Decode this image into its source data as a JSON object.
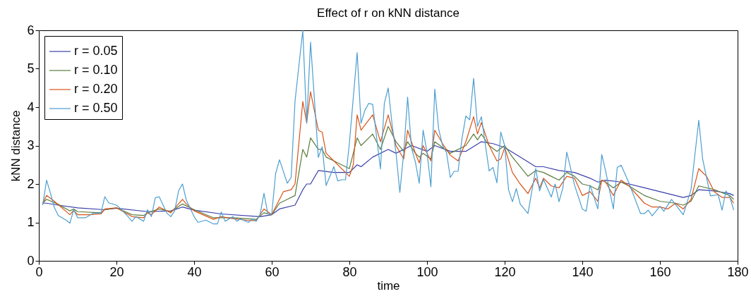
{
  "chart_data": {
    "type": "line",
    "title": "Effect of r on kNN distance",
    "xlabel": "time",
    "ylabel": "kNN distance",
    "xlim": [
      0,
      180
    ],
    "xticks": [
      0,
      20,
      40,
      60,
      80,
      100,
      120,
      140,
      160,
      180
    ],
    "ylim": [
      0,
      6
    ],
    "yticks": [
      0,
      1,
      2,
      3,
      4,
      5,
      6
    ],
    "grid": false,
    "legend": "top left",
    "line_style": "solid",
    "marker": "none",
    "series": [
      {
        "name": "r = 0.05",
        "color": "#3b3fa8",
        "x": [
          1,
          2,
          5,
          10,
          17,
          20,
          28,
          34,
          37,
          40,
          47,
          57,
          60,
          62,
          66,
          68,
          69,
          70,
          72,
          76,
          80,
          82,
          83,
          86,
          90,
          92,
          96,
          100,
          102,
          106,
          110,
          114,
          117,
          120,
          124,
          128,
          130,
          134,
          138,
          142,
          144,
          146,
          150,
          156,
          160,
          166,
          168,
          170,
          174,
          178,
          179
        ],
        "values": [
          1.5,
          1.5,
          1.45,
          1.38,
          1.33,
          1.37,
          1.28,
          1.3,
          1.4,
          1.32,
          1.22,
          1.15,
          1.2,
          1.35,
          1.45,
          1.85,
          2.0,
          2.0,
          2.35,
          2.3,
          2.3,
          2.5,
          2.45,
          2.7,
          2.9,
          2.8,
          3.0,
          2.85,
          3.0,
          2.85,
          2.85,
          3.1,
          3.05,
          2.95,
          2.7,
          2.45,
          2.45,
          2.35,
          2.3,
          2.15,
          2.05,
          2.1,
          2.05,
          1.9,
          1.8,
          1.65,
          1.7,
          1.85,
          1.82,
          1.75,
          1.7
        ]
      },
      {
        "name": "r = 0.10",
        "color": "#5b7d3c",
        "x": [
          1,
          2,
          5,
          8,
          9,
          10,
          16,
          17,
          20,
          24,
          27,
          28,
          31,
          34,
          37,
          40,
          45,
          50,
          56,
          58,
          60,
          62,
          64,
          66,
          68,
          69,
          70,
          72,
          73,
          74,
          76,
          80,
          82,
          83,
          86,
          88,
          90,
          92,
          94,
          95,
          97,
          98,
          99,
          101,
          102,
          104,
          106,
          110,
          112,
          113,
          114,
          116,
          118,
          120,
          122,
          124,
          126,
          128,
          130,
          132,
          134,
          136,
          138,
          140,
          142,
          144,
          145,
          146,
          148,
          150,
          152,
          156,
          160,
          164,
          166,
          168,
          170,
          174,
          178,
          179
        ],
        "values": [
          1.5,
          1.6,
          1.47,
          1.3,
          1.35,
          1.28,
          1.25,
          1.33,
          1.38,
          1.2,
          1.18,
          1.25,
          1.35,
          1.28,
          1.48,
          1.33,
          1.12,
          1.12,
          1.08,
          1.25,
          1.2,
          1.5,
          1.6,
          1.7,
          2.9,
          2.7,
          3.2,
          2.9,
          2.9,
          2.7,
          2.6,
          2.4,
          3.2,
          3.0,
          3.3,
          2.9,
          3.5,
          3.1,
          2.85,
          3.1,
          2.8,
          2.7,
          2.8,
          2.65,
          3.1,
          2.95,
          2.8,
          3.0,
          3.3,
          3.15,
          3.3,
          3.0,
          2.85,
          3.0,
          2.7,
          2.45,
          2.2,
          2.35,
          2.3,
          2.2,
          2.1,
          2.3,
          2.2,
          2.0,
          1.95,
          1.85,
          2.1,
          2.05,
          1.9,
          2.05,
          1.95,
          1.7,
          1.55,
          1.5,
          1.45,
          1.55,
          1.95,
          1.85,
          1.7,
          1.6
        ]
      },
      {
        "name": "r = 0.20",
        "color": "#d95319",
        "x": [
          1,
          2,
          4,
          8,
          9,
          10,
          13,
          16,
          17,
          20,
          24,
          27,
          28,
          29,
          31,
          34,
          37,
          38,
          40,
          45,
          47,
          50,
          54,
          56,
          58,
          60,
          62,
          63,
          65,
          66,
          68,
          69,
          70,
          72,
          73,
          74,
          76,
          80,
          81,
          82,
          83,
          86,
          88,
          90,
          92,
          94,
          95,
          97,
          98,
          99,
          101,
          102,
          104,
          106,
          108,
          110,
          112,
          113,
          114,
          116,
          118,
          119,
          120,
          122,
          124,
          126,
          128,
          129,
          130,
          132,
          134,
          136,
          138,
          140,
          142,
          144,
          145,
          146,
          148,
          150,
          152,
          156,
          158,
          160,
          162,
          164,
          166,
          168,
          170,
          172,
          174,
          176,
          178,
          179
        ],
        "values": [
          1.5,
          1.7,
          1.55,
          1.2,
          1.32,
          1.2,
          1.2,
          1.22,
          1.35,
          1.38,
          1.15,
          1.12,
          1.25,
          1.2,
          1.4,
          1.25,
          1.6,
          1.48,
          1.3,
          1.08,
          1.15,
          1.1,
          1.05,
          1.05,
          1.35,
          1.2,
          1.6,
          1.8,
          1.85,
          2.0,
          4.15,
          3.6,
          4.4,
          3.4,
          3.35,
          2.8,
          2.6,
          2.2,
          2.5,
          3.8,
          3.4,
          3.8,
          3.1,
          3.8,
          3.0,
          2.65,
          3.4,
          2.8,
          2.55,
          3.0,
          2.6,
          3.4,
          3.05,
          2.75,
          2.6,
          3.1,
          3.75,
          3.3,
          3.6,
          3.0,
          2.6,
          2.65,
          2.95,
          2.3,
          2.0,
          1.75,
          2.15,
          1.9,
          2.15,
          1.95,
          1.9,
          2.2,
          2.15,
          1.7,
          1.8,
          1.55,
          2.1,
          2.05,
          1.7,
          2.1,
          1.95,
          1.5,
          1.4,
          1.4,
          1.35,
          1.5,
          1.35,
          1.6,
          2.4,
          2.2,
          1.8,
          1.65,
          1.65,
          1.5
        ]
      },
      {
        "name": "r = 0.50",
        "color": "#4d9fd0",
        "x": [
          1,
          2,
          3,
          4,
          5,
          7,
          8,
          9,
          10,
          12,
          14,
          16,
          17,
          18,
          20,
          21,
          23,
          24,
          25,
          27,
          28,
          29,
          30,
          31,
          33,
          34,
          35,
          36,
          37,
          38,
          40,
          41,
          43,
          45,
          46,
          47,
          48,
          50,
          51,
          52,
          54,
          55,
          56,
          57,
          58,
          59,
          60,
          61,
          62,
          64,
          65,
          66,
          68,
          69,
          70,
          72,
          73,
          74,
          76,
          77,
          78,
          79,
          80,
          82,
          83,
          84,
          85,
          86,
          88,
          89,
          90,
          91,
          92,
          93,
          94,
          95,
          96,
          97,
          98,
          99,
          100,
          101,
          102,
          103,
          104,
          105,
          106,
          107,
          108,
          109,
          110,
          111,
          112,
          113,
          114,
          116,
          117,
          118,
          119,
          120,
          121,
          122,
          123,
          124,
          126,
          128,
          129,
          130,
          132,
          133,
          134,
          135,
          136,
          137,
          138,
          140,
          141,
          142,
          144,
          145,
          146,
          148,
          149,
          150,
          152,
          155,
          156,
          157,
          158,
          160,
          161,
          163,
          166,
          168,
          170,
          171,
          173,
          175,
          176,
          177,
          178,
          179
        ],
        "values": [
          1.45,
          2.1,
          1.76,
          1.39,
          1.18,
          1.06,
          0.98,
          1.33,
          1.12,
          1.12,
          1.24,
          1.24,
          1.67,
          1.51,
          1.45,
          1.36,
          1.15,
          1.03,
          1.15,
          1.03,
          1.33,
          1.15,
          1.64,
          1.67,
          1.24,
          1.15,
          1.3,
          1.82,
          2.0,
          1.58,
          1.15,
          1.0,
          1.06,
          0.96,
          0.96,
          1.27,
          1.03,
          1.15,
          1.03,
          1.09,
          1.0,
          1.09,
          1.03,
          1.21,
          1.76,
          1.22,
          1.22,
          2.27,
          2.63,
          2.02,
          2.17,
          4.16,
          6.0,
          3.58,
          5.69,
          2.69,
          2.97,
          1.96,
          2.45,
          2.08,
          2.11,
          2.11,
          3.06,
          5.42,
          3.58,
          3.92,
          4.1,
          4.07,
          2.39,
          4.1,
          4.5,
          3.55,
          2.82,
          1.78,
          2.82,
          4.26,
          2.94,
          2.57,
          2.02,
          3.4,
          2.82,
          1.93,
          4.47,
          3.43,
          3.0,
          2.82,
          2.17,
          2.33,
          2.33,
          3.18,
          3.77,
          3.67,
          4.75,
          3.5,
          3.75,
          2.34,
          2.43,
          2.03,
          3.35,
          3.0,
          1.85,
          1.54,
          1.88,
          1.48,
          1.23,
          2.4,
          1.82,
          2.12,
          1.66,
          2.0,
          1.54,
          1.9,
          2.83,
          2.4,
          1.97,
          1.35,
          1.29,
          1.97,
          1.35,
          2.77,
          2.34,
          1.35,
          2.43,
          2.49,
          2.03,
          1.23,
          1.23,
          1.32,
          1.17,
          1.42,
          1.29,
          1.6,
          1.2,
          1.85,
          3.66,
          2.65,
          1.69,
          1.72,
          1.32,
          1.82,
          1.66,
          1.32
        ]
      }
    ]
  }
}
